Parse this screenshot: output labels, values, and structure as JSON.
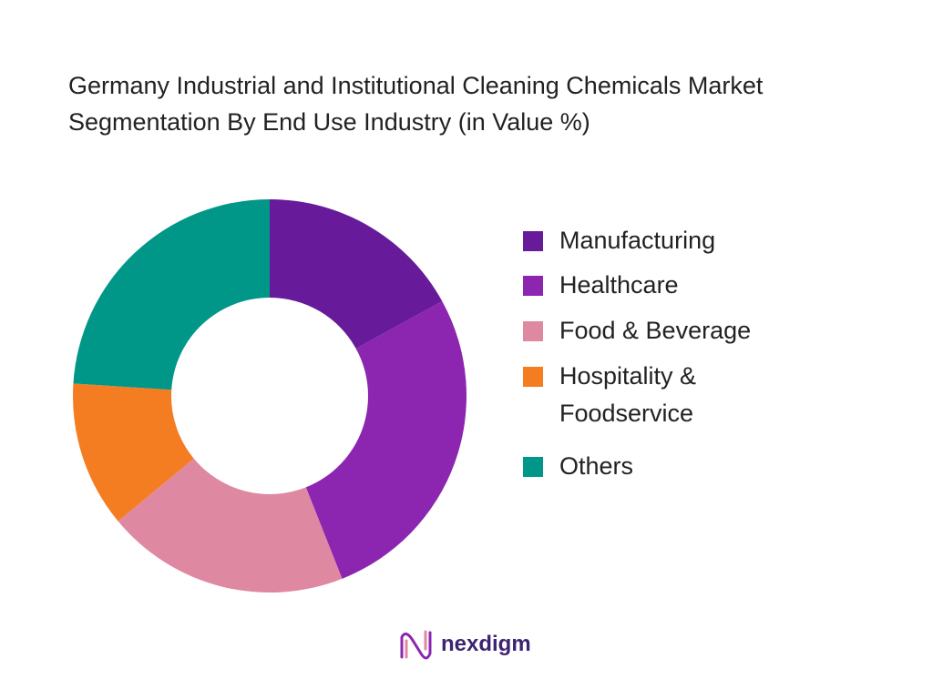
{
  "chart_data": {
    "type": "donut",
    "title": "Germany Industrial and Institutional Cleaning Chemicals Market Segmentation By End Use Industry (in Value %)",
    "categories": [
      "Manufacturing",
      "Healthcare",
      "Food & Beverage",
      "Hospitality & Foodservice",
      "Others"
    ],
    "values": [
      17,
      27,
      20,
      12,
      24
    ],
    "colors": [
      "#671a9a",
      "#8c25b0",
      "#de88a2",
      "#f47d22",
      "#009688"
    ]
  },
  "logo": "nexdigm"
}
